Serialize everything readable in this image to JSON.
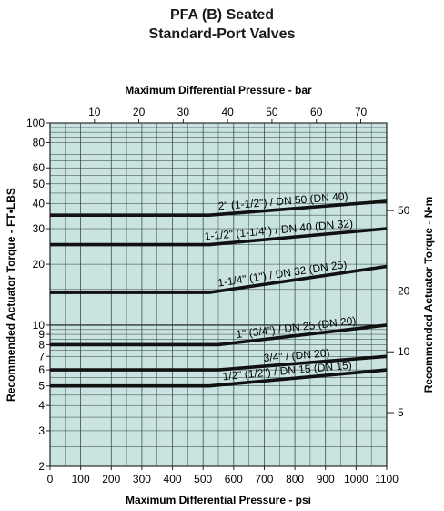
{
  "chart_data": {
    "type": "line",
    "title": "PFA (B) Seated",
    "subtitle": "Standard-Port Valves",
    "xlabel": "Maximum Differential Pressure - psi",
    "x2label": "Maximum Differential Pressure - bar",
    "ylabel": "Recommended Actuator Torque - FT•LBS",
    "y2label": "Recommended Actuator Torque - N•m",
    "xlim": [
      0,
      1100
    ],
    "ylim": [
      2,
      100
    ],
    "yscale": "log",
    "grid": true,
    "x_ticks": [
      0,
      100,
      200,
      300,
      400,
      500,
      600,
      700,
      800,
      900,
      1000,
      1100
    ],
    "x_tick_labels": [
      "0",
      "100",
      "200",
      "300",
      "400",
      "500",
      "600",
      "700",
      "800",
      "900",
      "1000",
      "1100"
    ],
    "x2_ticks": [
      10,
      20,
      30,
      40,
      50,
      60,
      70
    ],
    "x2_tick_labels": [
      "10",
      "20",
      "30",
      "40",
      "50",
      "60",
      "70"
    ],
    "y_ticks": [
      2,
      3,
      4,
      5,
      6,
      7,
      8,
      9,
      10,
      20,
      30,
      40,
      50,
      60,
      80,
      100
    ],
    "y_tick_labels": [
      "2",
      "3",
      "4",
      "5",
      "6",
      "7",
      "8",
      "9",
      "10",
      "20",
      "30",
      "40",
      "50",
      "60",
      "80",
      "100"
    ],
    "y2_ticks": [
      5,
      10,
      20,
      50
    ],
    "y2_tick_labels": [
      "5",
      "10",
      "20",
      "50"
    ],
    "series": [
      {
        "name": "2\" (1-1/2\") / DN 50 (DN 40)",
        "x": [
          0,
          520,
          1100
        ],
        "y": [
          35,
          35,
          41
        ]
      },
      {
        "name": "1-1/2\" (1-1/4\") / DN 40 (DN 32)",
        "x": [
          0,
          520,
          1100
        ],
        "y": [
          25,
          25,
          30
        ]
      },
      {
        "name": "1-1/4\" (1\") / DN 32 (DN 25)",
        "x": [
          0,
          520,
          1100
        ],
        "y": [
          14.5,
          14.5,
          19.5
        ]
      },
      {
        "name": "1\" (3/4\") / DN 25 (DN 20)",
        "x": [
          0,
          550,
          1100
        ],
        "y": [
          8,
          8,
          10
        ]
      },
      {
        "name": "3/4\" / (DN 20)",
        "x": [
          0,
          550,
          1100
        ],
        "y": [
          6,
          6,
          7
        ]
      },
      {
        "name": "1/2\" (1/2\") / DN 15 (DN 15)",
        "x": [
          0,
          520,
          1100
        ],
        "y": [
          5,
          5,
          6
        ]
      }
    ]
  }
}
